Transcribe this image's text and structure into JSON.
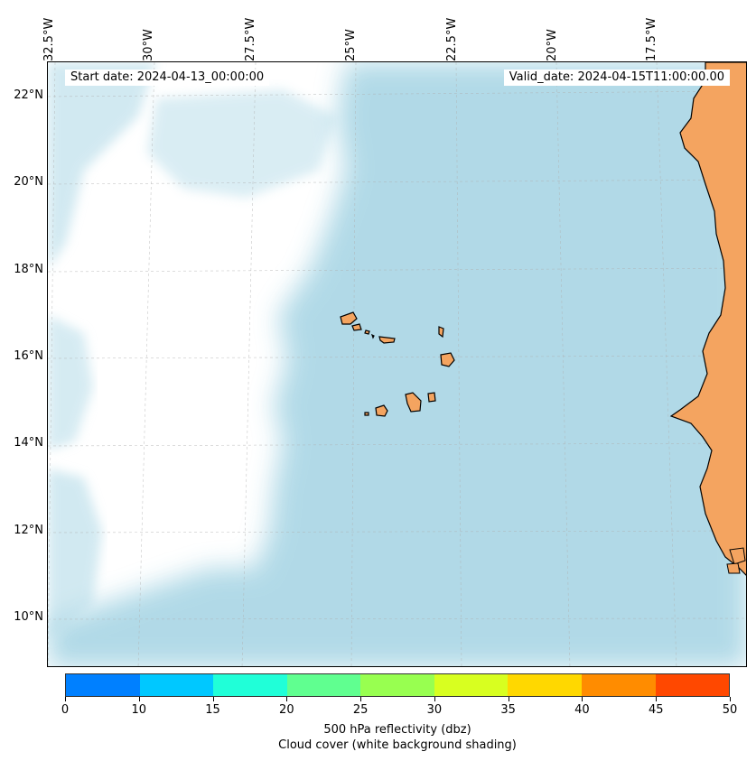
{
  "map": {
    "start_date": "Start date: 2024-04-13_00:00:00",
    "valid_date": "Valid_date: 2024-04-15T11:00:00.00",
    "longitude_labels": [
      "32.5°W",
      "30°W",
      "27.5°W",
      "25°W",
      "22.5°W",
      "20°W",
      "17.5°W"
    ],
    "latitude_labels": [
      "22°N",
      "20°N",
      "18°N",
      "16°N",
      "14°N",
      "12°N",
      "10°N"
    ],
    "colors": {
      "cloud_cover": "#add8e6",
      "land": "#f4a460",
      "gridlines": "#b0b0b0"
    }
  },
  "colorbar": {
    "ticks": [
      "0",
      "10",
      "15",
      "20",
      "25",
      "30",
      "35",
      "40",
      "45",
      "50"
    ],
    "colors": [
      "#0080ff",
      "#00c8ff",
      "#20ffd8",
      "#60ff90",
      "#98ff50",
      "#d8ff20",
      "#ffd800",
      "#ff8c00",
      "#ff4800"
    ],
    "label": "500 hPa reflectivity (dbz)",
    "sublabel": "Cloud cover (white background shading)"
  }
}
